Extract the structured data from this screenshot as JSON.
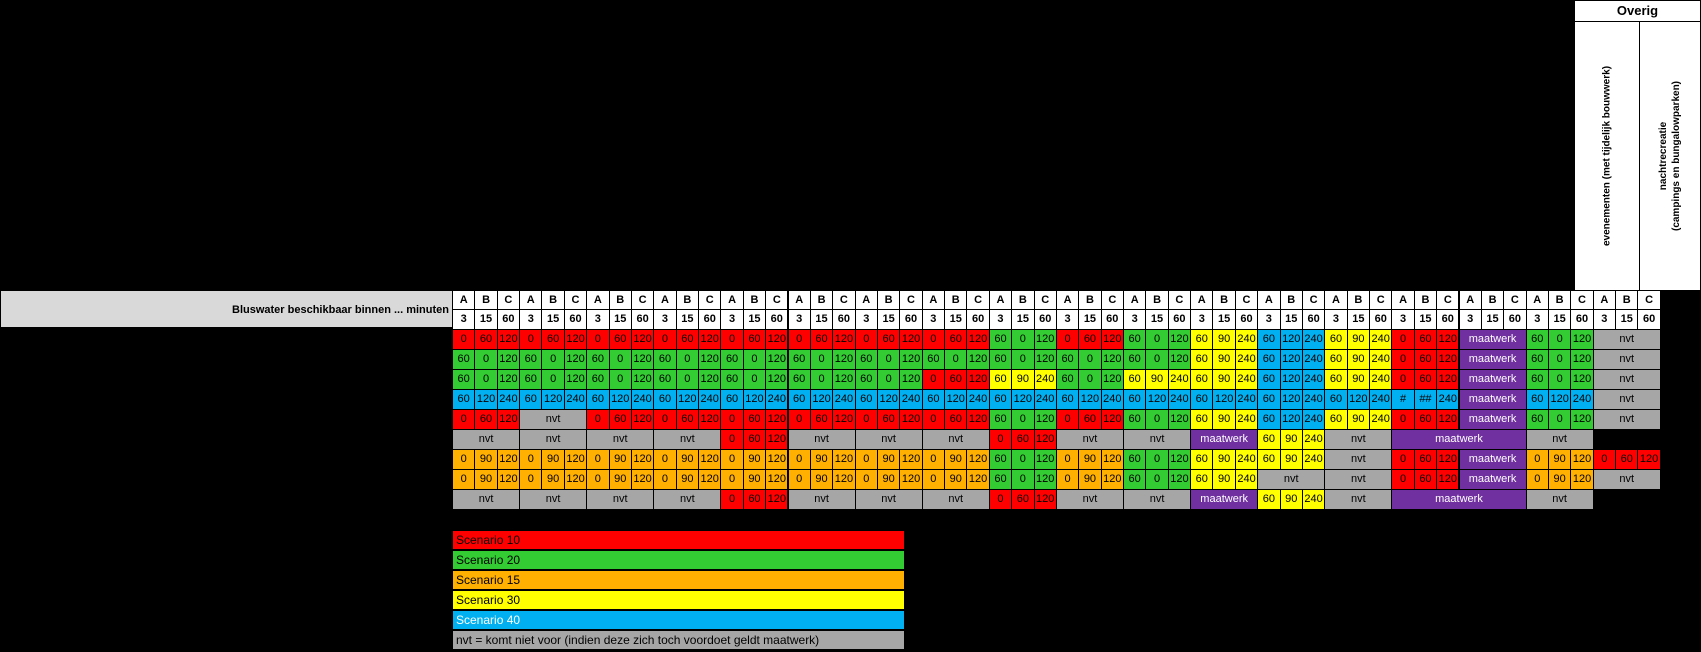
{
  "overig_title": "Overig",
  "event_col_label": "evenementen (met tijdelijk bouwwerk)",
  "nacht_col_label_1": "nachtrecreatie",
  "nacht_col_label_2": "(campings en bungalowparken)",
  "bluswater_label": "Bluswater beschikbaar binnen ... minuten",
  "groups": [
    {
      "h": [
        "A",
        "B",
        "C"
      ],
      "m": [
        "3",
        "15",
        "60"
      ]
    },
    {
      "h": [
        "A",
        "B",
        "C"
      ],
      "m": [
        "3",
        "15",
        "60"
      ]
    },
    {
      "h": [
        "A",
        "B",
        "C"
      ],
      "m": [
        "3",
        "15",
        "60"
      ]
    },
    {
      "h": [
        "A",
        "B",
        "C"
      ],
      "m": [
        "3",
        "15",
        "60"
      ]
    },
    {
      "h": [
        "A",
        "B",
        "C"
      ],
      "m": [
        "3",
        "15",
        "60"
      ]
    },
    {
      "h": [
        "A",
        "B",
        "C"
      ],
      "m": [
        "3",
        "15",
        "60"
      ]
    },
    {
      "h": [
        "A",
        "B",
        "C"
      ],
      "m": [
        "3",
        "15",
        "60"
      ]
    },
    {
      "h": [
        "A",
        "B",
        "C"
      ],
      "m": [
        "3",
        "15",
        "60"
      ]
    },
    {
      "h": [
        "A",
        "B",
        "C"
      ],
      "m": [
        "3",
        "15",
        "60"
      ]
    },
    {
      "h": [
        "A",
        "B",
        "C"
      ],
      "m": [
        "3",
        "15",
        "60"
      ]
    },
    {
      "h": [
        "A",
        "B",
        "C"
      ],
      "m": [
        "3",
        "15",
        "60"
      ]
    },
    {
      "h": [
        "A",
        "B",
        "C"
      ],
      "m": [
        "3",
        "15",
        "60"
      ]
    },
    {
      "h": [
        "A",
        "B",
        "C"
      ],
      "m": [
        "3",
        "15",
        "60"
      ]
    },
    {
      "h": [
        "A",
        "B",
        "C"
      ],
      "m": [
        "3",
        "15",
        "60"
      ]
    },
    {
      "h": [
        "A",
        "B",
        "C"
      ],
      "m": [
        "3",
        "15",
        "60"
      ]
    },
    {
      "h": [
        "A",
        "B",
        "C"
      ],
      "m": [
        "3",
        "15",
        "60"
      ]
    },
    {
      "h": [
        "A",
        "B",
        "C"
      ],
      "m": [
        "3",
        "15",
        "60"
      ]
    },
    {
      "h": [
        "A",
        "B",
        "C"
      ],
      "m": [
        "3",
        "15",
        "60"
      ]
    }
  ],
  "rows": [
    [
      {
        "c": "R",
        "v": [
          "0",
          "60",
          "120"
        ]
      },
      {
        "c": "R",
        "v": [
          "0",
          "60",
          "120"
        ]
      },
      {
        "c": "R",
        "v": [
          "0",
          "60",
          "120"
        ]
      },
      {
        "c": "R",
        "v": [
          "0",
          "60",
          "120"
        ]
      },
      {
        "c": "R",
        "v": [
          "0",
          "60",
          "120"
        ]
      },
      {
        "c": "R",
        "v": [
          "0",
          "60",
          "120"
        ]
      },
      {
        "c": "R",
        "v": [
          "0",
          "60",
          "120"
        ]
      },
      {
        "c": "R",
        "v": [
          "0",
          "60",
          "120"
        ]
      },
      {
        "c": "G",
        "v": [
          "60",
          "0",
          "120"
        ]
      },
      {
        "c": "R",
        "v": [
          "0",
          "60",
          "120"
        ]
      },
      {
        "c": "G",
        "v": [
          "60",
          "0",
          "120"
        ]
      },
      {
        "c": "Y",
        "v": [
          "60",
          "90",
          "240"
        ]
      },
      {
        "c": "B",
        "v": [
          "60",
          "120",
          "240"
        ]
      },
      {
        "c": "Y",
        "v": [
          "60",
          "90",
          "240"
        ]
      },
      {
        "c": "R",
        "v": [
          "0",
          "60",
          "120"
        ]
      },
      {
        "c": "P",
        "t": "maatwerk"
      },
      {
        "c": "G",
        "v": [
          "60",
          "0",
          "120"
        ]
      },
      {
        "c": "N",
        "t": "nvt"
      }
    ],
    [
      {
        "c": "G",
        "v": [
          "60",
          "0",
          "120"
        ]
      },
      {
        "c": "G",
        "v": [
          "60",
          "0",
          "120"
        ]
      },
      {
        "c": "G",
        "v": [
          "60",
          "0",
          "120"
        ]
      },
      {
        "c": "G",
        "v": [
          "60",
          "0",
          "120"
        ]
      },
      {
        "c": "G",
        "v": [
          "60",
          "0",
          "120"
        ]
      },
      {
        "c": "G",
        "v": [
          "60",
          "0",
          "120"
        ]
      },
      {
        "c": "G",
        "v": [
          "60",
          "0",
          "120"
        ]
      },
      {
        "c": "G",
        "v": [
          "60",
          "0",
          "120"
        ]
      },
      {
        "c": "G",
        "v": [
          "60",
          "0",
          "120"
        ]
      },
      {
        "c": "G",
        "v": [
          "60",
          "0",
          "120"
        ]
      },
      {
        "c": "G",
        "v": [
          "60",
          "0",
          "120"
        ]
      },
      {
        "c": "Y",
        "v": [
          "60",
          "90",
          "240"
        ]
      },
      {
        "c": "B",
        "v": [
          "60",
          "120",
          "240"
        ]
      },
      {
        "c": "Y",
        "v": [
          "60",
          "90",
          "240"
        ]
      },
      {
        "c": "R",
        "v": [
          "0",
          "60",
          "120"
        ]
      },
      {
        "c": "P",
        "t": "maatwerk"
      },
      {
        "c": "G",
        "v": [
          "60",
          "0",
          "120"
        ]
      },
      {
        "c": "N",
        "t": "nvt"
      }
    ],
    [
      {
        "c": "G",
        "v": [
          "60",
          "0",
          "120"
        ]
      },
      {
        "c": "G",
        "v": [
          "60",
          "0",
          "120"
        ]
      },
      {
        "c": "G",
        "v": [
          "60",
          "0",
          "120"
        ]
      },
      {
        "c": "G",
        "v": [
          "60",
          "0",
          "120"
        ]
      },
      {
        "c": "G",
        "v": [
          "60",
          "0",
          "120"
        ]
      },
      {
        "c": "G",
        "v": [
          "60",
          "0",
          "120"
        ]
      },
      {
        "c": "G",
        "v": [
          "60",
          "0",
          "120"
        ]
      },
      {
        "c": "R",
        "v": [
          "0",
          "60",
          "120"
        ]
      },
      {
        "c": "Y",
        "v": [
          "60",
          "90",
          "240"
        ]
      },
      {
        "c": "G",
        "v": [
          "60",
          "0",
          "120"
        ]
      },
      {
        "c": "Y",
        "v": [
          "60",
          "90",
          "240"
        ]
      },
      {
        "c": "Y",
        "v": [
          "60",
          "90",
          "240"
        ]
      },
      {
        "c": "B",
        "v": [
          "60",
          "120",
          "240"
        ]
      },
      {
        "c": "Y",
        "v": [
          "60",
          "90",
          "240"
        ]
      },
      {
        "c": "R",
        "v": [
          "0",
          "60",
          "120"
        ]
      },
      {
        "c": "P",
        "t": "maatwerk"
      },
      {
        "c": "G",
        "v": [
          "60",
          "0",
          "120"
        ]
      },
      {
        "c": "N",
        "t": "nvt"
      }
    ],
    [
      {
        "c": "B",
        "v": [
          "60",
          "120",
          "240"
        ]
      },
      {
        "c": "B",
        "v": [
          "60",
          "120",
          "240"
        ]
      },
      {
        "c": "B",
        "v": [
          "60",
          "120",
          "240"
        ]
      },
      {
        "c": "B",
        "v": [
          "60",
          "120",
          "240"
        ]
      },
      {
        "c": "B",
        "v": [
          "60",
          "120",
          "240"
        ]
      },
      {
        "c": "B",
        "v": [
          "60",
          "120",
          "240"
        ]
      },
      {
        "c": "B",
        "v": [
          "60",
          "120",
          "240"
        ]
      },
      {
        "c": "B",
        "v": [
          "60",
          "120",
          "240"
        ]
      },
      {
        "c": "B",
        "v": [
          "60",
          "120",
          "240"
        ]
      },
      {
        "c": "B",
        "v": [
          "60",
          "120",
          "240"
        ]
      },
      {
        "c": "B",
        "v": [
          "60",
          "120",
          "240"
        ]
      },
      {
        "c": "B",
        "v": [
          "60",
          "120",
          "240"
        ]
      },
      {
        "c": "B",
        "v": [
          "60",
          "120",
          "240"
        ]
      },
      {
        "c": "B",
        "v": [
          "60",
          "120",
          "240"
        ]
      },
      {
        "c": "B",
        "v": [
          "#",
          "##",
          "240"
        ]
      },
      {
        "c": "P",
        "t": "maatwerk"
      },
      {
        "c": "B",
        "v": [
          "60",
          "120",
          "240"
        ]
      },
      {
        "c": "N",
        "t": "nvt"
      }
    ],
    [
      {
        "c": "R",
        "v": [
          "0",
          "60",
          "120"
        ]
      },
      {
        "c": "N",
        "t": "nvt"
      },
      {
        "c": "R",
        "v": [
          "0",
          "60",
          "120"
        ]
      },
      {
        "c": "R",
        "v": [
          "0",
          "60",
          "120"
        ]
      },
      {
        "c": "R",
        "v": [
          "0",
          "60",
          "120"
        ]
      },
      {
        "c": "R",
        "v": [
          "0",
          "60",
          "120"
        ]
      },
      {
        "c": "R",
        "v": [
          "0",
          "60",
          "120"
        ]
      },
      {
        "c": "R",
        "v": [
          "0",
          "60",
          "120"
        ]
      },
      {
        "c": "G",
        "v": [
          "60",
          "0",
          "120"
        ]
      },
      {
        "c": "R",
        "v": [
          "0",
          "60",
          "120"
        ]
      },
      {
        "c": "G",
        "v": [
          "60",
          "0",
          "120"
        ]
      },
      {
        "c": "Y",
        "v": [
          "60",
          "90",
          "240"
        ]
      },
      {
        "c": "B",
        "v": [
          "60",
          "120",
          "240"
        ]
      },
      {
        "c": "Y",
        "v": [
          "60",
          "90",
          "240"
        ]
      },
      {
        "c": "R",
        "v": [
          "0",
          "60",
          "120"
        ]
      },
      {
        "c": "P",
        "t": "maatwerk"
      },
      {
        "c": "G",
        "v": [
          "60",
          "0",
          "120"
        ]
      },
      {
        "c": "N",
        "t": "nvt"
      }
    ],
    [
      {
        "c": "N",
        "t": "nvt"
      },
      {
        "c": "N",
        "t": "nvt"
      },
      {
        "c": "N",
        "t": "nvt"
      },
      {
        "c": "N",
        "t": "nvt"
      },
      {
        "c": "R",
        "v": [
          "0",
          "60",
          "120"
        ]
      },
      {
        "c": "N",
        "t": "nvt"
      },
      {
        "c": "N",
        "t": "nvt"
      },
      {
        "c": "N",
        "t": "nvt"
      },
      {
        "c": "R",
        "v": [
          "0",
          "60",
          "120"
        ]
      },
      {
        "c": "N",
        "t": "nvt"
      },
      {
        "c": "N",
        "t": "nvt"
      },
      {
        "c": "P",
        "t": "maatwerk"
      },
      {
        "c": "Y",
        "v": [
          "60",
          "90",
          "240"
        ]
      },
      {
        "c": "N",
        "t": "nvt"
      },
      {
        "c": "P",
        "t": "maatwerk",
        "span": 2
      },
      {
        "c": "N",
        "t": "nvt"
      }
    ],
    [
      {
        "c": "O",
        "v": [
          "0",
          "90",
          "120"
        ]
      },
      {
        "c": "O",
        "v": [
          "0",
          "90",
          "120"
        ]
      },
      {
        "c": "O",
        "v": [
          "0",
          "90",
          "120"
        ]
      },
      {
        "c": "O",
        "v": [
          "0",
          "90",
          "120"
        ]
      },
      {
        "c": "O",
        "v": [
          "0",
          "90",
          "120"
        ]
      },
      {
        "c": "O",
        "v": [
          "0",
          "90",
          "120"
        ]
      },
      {
        "c": "O",
        "v": [
          "0",
          "90",
          "120"
        ]
      },
      {
        "c": "O",
        "v": [
          "0",
          "90",
          "120"
        ]
      },
      {
        "c": "G",
        "v": [
          "60",
          "0",
          "120"
        ]
      },
      {
        "c": "O",
        "v": [
          "0",
          "90",
          "120"
        ]
      },
      {
        "c": "G",
        "v": [
          "60",
          "0",
          "120"
        ]
      },
      {
        "c": "Y",
        "v": [
          "60",
          "90",
          "240"
        ]
      },
      {
        "c": "Y",
        "v": [
          "60",
          "90",
          "240"
        ]
      },
      {
        "c": "N",
        "t": "nvt"
      },
      {
        "c": "R",
        "v": [
          "0",
          "60",
          "120"
        ]
      },
      {
        "c": "P",
        "t": "maatwerk"
      },
      {
        "c": "O",
        "v": [
          "0",
          "90",
          "120"
        ]
      },
      {
        "c": "R",
        "v": [
          "0",
          "60",
          "120"
        ]
      }
    ],
    [
      {
        "c": "O",
        "v": [
          "0",
          "90",
          "120"
        ]
      },
      {
        "c": "O",
        "v": [
          "0",
          "90",
          "120"
        ]
      },
      {
        "c": "O",
        "v": [
          "0",
          "90",
          "120"
        ]
      },
      {
        "c": "O",
        "v": [
          "0",
          "90",
          "120"
        ]
      },
      {
        "c": "O",
        "v": [
          "0",
          "90",
          "120"
        ]
      },
      {
        "c": "O",
        "v": [
          "0",
          "90",
          "120"
        ]
      },
      {
        "c": "O",
        "v": [
          "0",
          "90",
          "120"
        ]
      },
      {
        "c": "O",
        "v": [
          "0",
          "90",
          "120"
        ]
      },
      {
        "c": "G",
        "v": [
          "60",
          "0",
          "120"
        ]
      },
      {
        "c": "O",
        "v": [
          "0",
          "90",
          "120"
        ]
      },
      {
        "c": "G",
        "v": [
          "60",
          "0",
          "120"
        ]
      },
      {
        "c": "Y",
        "v": [
          "60",
          "90",
          "240"
        ]
      },
      {
        "c": "N",
        "t": "nvt"
      },
      {
        "c": "N",
        "t": "nvt"
      },
      {
        "c": "R",
        "v": [
          "0",
          "60",
          "120"
        ]
      },
      {
        "c": "P",
        "t": "maatwerk"
      },
      {
        "c": "O",
        "v": [
          "0",
          "90",
          "120"
        ]
      },
      {
        "c": "N",
        "t": "nvt"
      }
    ],
    [
      {
        "c": "N",
        "t": "nvt"
      },
      {
        "c": "N",
        "t": "nvt"
      },
      {
        "c": "N",
        "t": "nvt"
      },
      {
        "c": "N",
        "t": "nvt"
      },
      {
        "c": "R",
        "v": [
          "0",
          "60",
          "120"
        ]
      },
      {
        "c": "N",
        "t": "nvt"
      },
      {
        "c": "N",
        "t": "nvt"
      },
      {
        "c": "N",
        "t": "nvt"
      },
      {
        "c": "R",
        "v": [
          "0",
          "60",
          "120"
        ]
      },
      {
        "c": "N",
        "t": "nvt"
      },
      {
        "c": "N",
        "t": "nvt"
      },
      {
        "c": "P",
        "t": "maatwerk"
      },
      {
        "c": "Y",
        "v": [
          "60",
          "90",
          "240"
        ]
      },
      {
        "c": "N",
        "t": "nvt"
      },
      {
        "c": "P",
        "t": "maatwerk",
        "span": 2
      },
      {
        "c": "N",
        "t": "nvt"
      }
    ]
  ],
  "legend": [
    {
      "label": "Scenario 10",
      "color": "#ff0000"
    },
    {
      "label": "Scenario 20",
      "color": "#33cc33"
    },
    {
      "label": "Scenario 15",
      "color": "#ffb000"
    },
    {
      "label": "Scenario 30",
      "color": "#ffff00"
    },
    {
      "label": "Scenario 40",
      "color": "#00b0f0"
    },
    {
      "label": "nvt = komt niet voor (indien deze zich toch voordoet geldt maatwerk)",
      "color": "#a6a6a6"
    }
  ],
  "colors": {
    "R": "#ff0000",
    "G": "#33cc33",
    "O": "#ffb000",
    "Y": "#ffff00",
    "B": "#00b0f0",
    "P": "#7030a0",
    "N": "#a6a6a6"
  }
}
